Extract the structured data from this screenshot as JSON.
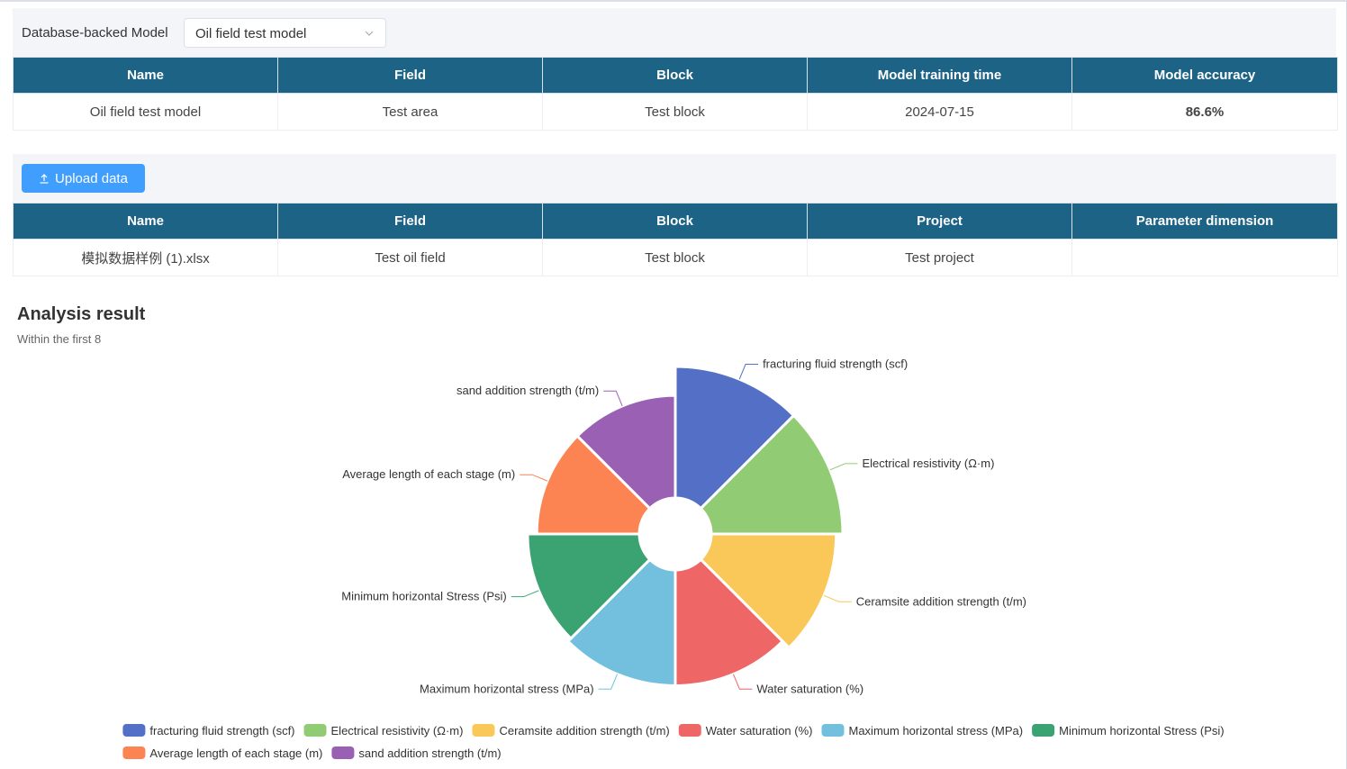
{
  "model_selector": {
    "label": "Database-backed Model",
    "selected": "Oil field test model"
  },
  "model_table": {
    "headers": [
      "Name",
      "Field",
      "Block",
      "Model training time",
      "Model accuracy"
    ],
    "row": [
      "Oil field test model",
      "Test area",
      "Test block",
      "2024-07-15",
      "86.6%"
    ]
  },
  "upload": {
    "label": "Upload data"
  },
  "data_table": {
    "headers": [
      "Name",
      "Field",
      "Block",
      "Project",
      "Parameter dimension"
    ],
    "row": [
      "模拟数据样例 (1).xlsx",
      "Test oil field",
      "Test block",
      "Test project",
      ""
    ]
  },
  "analysis": {
    "title": "Analysis result",
    "subtitle": "Within the first 8"
  },
  "chart_data": {
    "type": "pie",
    "variant": "nightingale-rose",
    "title": "Analysis result",
    "subtitle": "Within the first 8",
    "legend_position": "bottom",
    "series": [
      {
        "name": "fracturing fluid strength (scf)",
        "value": 100,
        "color": "#5470c6"
      },
      {
        "name": "Electrical resistivity (Ω·m)",
        "value": 100,
        "color": "#91cc75"
      },
      {
        "name": "Ceramsite addition strength (t/m)",
        "value": 95,
        "color": "#fac858"
      },
      {
        "name": "Water saturation (%)",
        "value": 88,
        "color": "#ee6666"
      },
      {
        "name": "Maximum horizontal stress (MPa)",
        "value": 88,
        "color": "#73c0de"
      },
      {
        "name": "Minimum horizontal Stress (Psi)",
        "value": 85,
        "color": "#3ba272"
      },
      {
        "name": "Average length of each stage (m)",
        "value": 78,
        "color": "#fc8452"
      },
      {
        "name": "sand addition strength (t/m)",
        "value": 78,
        "color": "#9a60b4"
      }
    ]
  }
}
